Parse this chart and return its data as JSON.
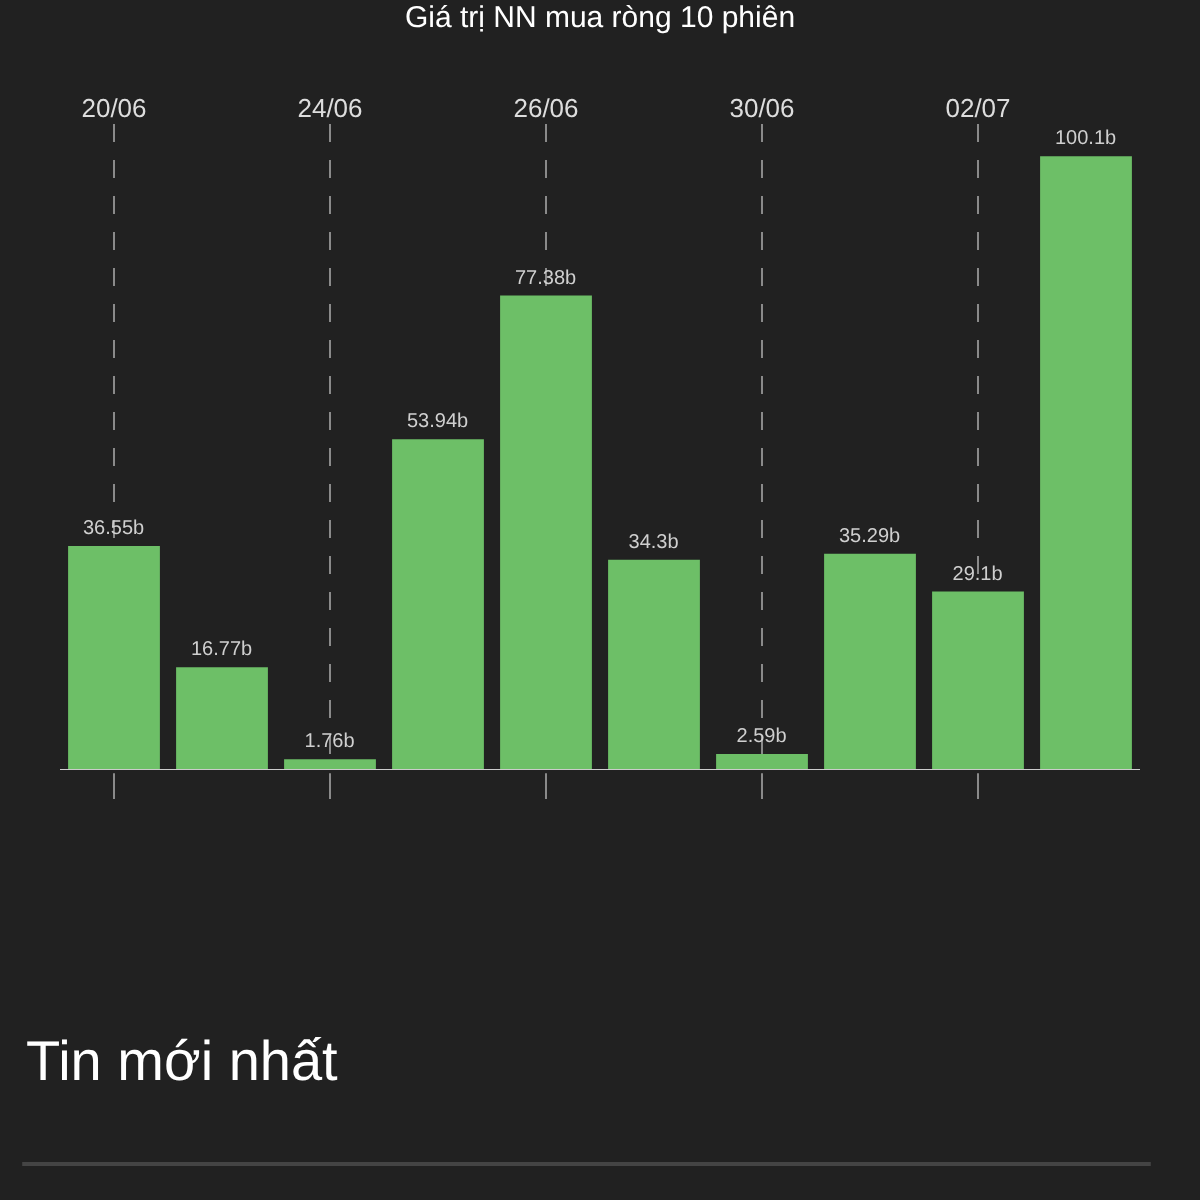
{
  "chart_data": {
    "type": "bar",
    "title": "Giá trị NN mua ròng 10 phiên",
    "categories": [
      "20/06",
      null,
      "24/06",
      null,
      "26/06",
      null,
      "30/06",
      null,
      "02/07",
      null
    ],
    "values": [
      36.55,
      16.77,
      1.76,
      53.94,
      77.38,
      34.3,
      2.59,
      35.29,
      29.1,
      100.1
    ],
    "value_labels": [
      "36.55b",
      "16.77b",
      "1.76b",
      "53.94b",
      "77.38b",
      "34.3b",
      "2.59b",
      "35.29b",
      "29.1b",
      "100.1b"
    ],
    "color": "#6dbf67",
    "grid": "x",
    "legend": false,
    "annotations": [
      "Tin mới nhất"
    ]
  }
}
